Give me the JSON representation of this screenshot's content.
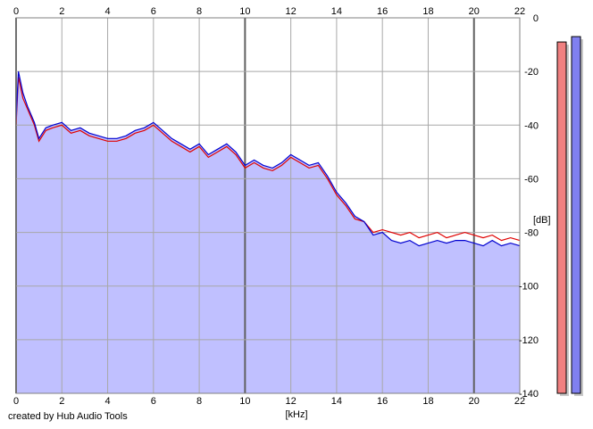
{
  "credit": "created by Hub Audio Tools",
  "chart_data": {
    "type": "area",
    "xlabel": "[kHz]",
    "ylabel": "[dB]",
    "xlim": [
      0,
      22
    ],
    "ylim": [
      -140,
      0
    ],
    "x_ticks": [
      "0",
      "2",
      "4",
      "6",
      "8",
      "10",
      "12",
      "14",
      "16",
      "18",
      "20",
      "22"
    ],
    "y_ticks": [
      "0",
      "-20",
      "-40",
      "-60",
      "-80",
      "-100",
      "-120",
      "-140"
    ],
    "grid": true,
    "fill_color": "#c0c0ff",
    "series": [
      {
        "color": "#e00000",
        "x": [
          0,
          0.1,
          0.3,
          0.5,
          0.8,
          1.0,
          1.3,
          1.6,
          2.0,
          2.4,
          2.8,
          3.2,
          3.6,
          4.0,
          4.4,
          4.8,
          5.2,
          5.6,
          6.0,
          6.4,
          6.8,
          7.2,
          7.6,
          8.0,
          8.4,
          8.8,
          9.2,
          9.6,
          10.0,
          10.4,
          10.8,
          11.2,
          11.6,
          12.0,
          12.4,
          12.8,
          13.2,
          13.6,
          14.0,
          14.4,
          14.8,
          15.2,
          15.6,
          16.0,
          16.4,
          16.8,
          17.2,
          17.6,
          18.0,
          18.4,
          18.8,
          19.2,
          19.6,
          20.0,
          20.4,
          20.8,
          21.2,
          21.6,
          22.0
        ],
        "y": [
          -40,
          -22,
          -30,
          -34,
          -40,
          -46,
          -42,
          -41,
          -40,
          -43,
          -42,
          -44,
          -45,
          -46,
          -46,
          -45,
          -43,
          -42,
          -40,
          -43,
          -46,
          -48,
          -50,
          -48,
          -52,
          -50,
          -48,
          -51,
          -56,
          -54,
          -56,
          -57,
          -55,
          -52,
          -54,
          -56,
          -55,
          -60,
          -66,
          -70,
          -75,
          -76,
          -80,
          -79,
          -80,
          -81,
          -80,
          -82,
          -81,
          -80,
          -82,
          -81,
          -80,
          -81,
          -82,
          -81,
          -83,
          -82,
          -83
        ]
      },
      {
        "color": "#0000d0",
        "x": [
          0,
          0.1,
          0.3,
          0.5,
          0.8,
          1.0,
          1.3,
          1.6,
          2.0,
          2.4,
          2.8,
          3.2,
          3.6,
          4.0,
          4.4,
          4.8,
          5.2,
          5.6,
          6.0,
          6.4,
          6.8,
          7.2,
          7.6,
          8.0,
          8.4,
          8.8,
          9.2,
          9.6,
          10.0,
          10.4,
          10.8,
          11.2,
          11.6,
          12.0,
          12.4,
          12.8,
          13.2,
          13.6,
          14.0,
          14.4,
          14.8,
          15.2,
          15.6,
          16.0,
          16.4,
          16.8,
          17.2,
          17.6,
          18.0,
          18.4,
          18.8,
          19.2,
          19.6,
          20.0,
          20.4,
          20.8,
          21.2,
          21.6,
          22.0
        ],
        "y": [
          -38,
          -20,
          -28,
          -33,
          -39,
          -45,
          -41,
          -40,
          -39,
          -42,
          -41,
          -43,
          -44,
          -45,
          -45,
          -44,
          -42,
          -41,
          -39,
          -42,
          -45,
          -47,
          -49,
          -47,
          -51,
          -49,
          -47,
          -50,
          -55,
          -53,
          -55,
          -56,
          -54,
          -51,
          -53,
          -55,
          -54,
          -59,
          -65,
          -69,
          -74,
          -76,
          -81,
          -80,
          -83,
          -84,
          -83,
          -85,
          -84,
          -83,
          -84,
          -83,
          -83,
          -84,
          -85,
          -83,
          -85,
          -84,
          -85
        ]
      }
    ],
    "meters": [
      {
        "color": "#f08080",
        "level": -9
      },
      {
        "color": "#8080f0",
        "level": -7
      }
    ]
  }
}
